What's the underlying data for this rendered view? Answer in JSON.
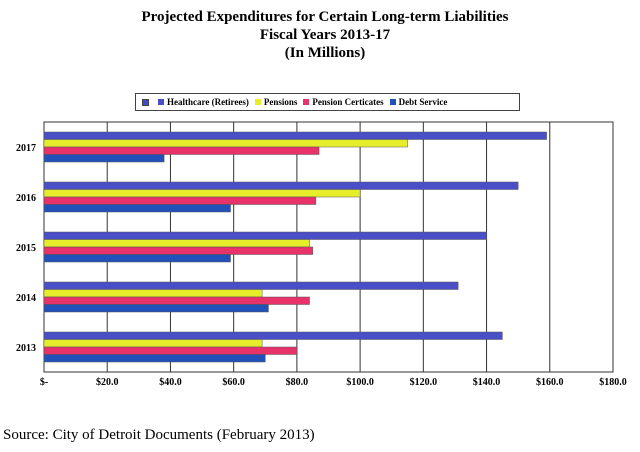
{
  "title": {
    "line1": "Projected Expenditures for Certain Long-term Liabilities",
    "line2": "Fiscal Years 2013-17",
    "line3": "(In Millions)"
  },
  "source": "Source: City of Detroit Documents (February 2013)",
  "chart_data": {
    "type": "bar",
    "orientation": "horizontal",
    "categories": [
      "2017",
      "2016",
      "2015",
      "2014",
      "2013"
    ],
    "series": [
      {
        "name": "Healthcare (Retirees)",
        "color": "#4a4fc8",
        "values": [
          159,
          150,
          140,
          131,
          145
        ]
      },
      {
        "name": "Pensions",
        "color": "#e6ee2c",
        "values": [
          115,
          100,
          84,
          69,
          69
        ]
      },
      {
        "name": "Pension Certicates",
        "color": "#e8336a",
        "values": [
          87,
          86,
          85,
          84,
          80
        ]
      },
      {
        "name": "Debt Service",
        "color": "#2151b9",
        "values": [
          38,
          59,
          59,
          71,
          70
        ]
      }
    ],
    "xlim": [
      0,
      180
    ],
    "xticks": [
      "$-",
      "$20.0",
      "$40.0",
      "$60.0",
      "$80.0",
      "$100.0",
      "$120.0",
      "$140.0",
      "$160.0",
      "$180.0"
    ],
    "xtick_values": [
      0,
      20,
      40,
      60,
      80,
      100,
      120,
      140,
      160,
      180
    ],
    "grid": true,
    "legend_position": "top"
  }
}
